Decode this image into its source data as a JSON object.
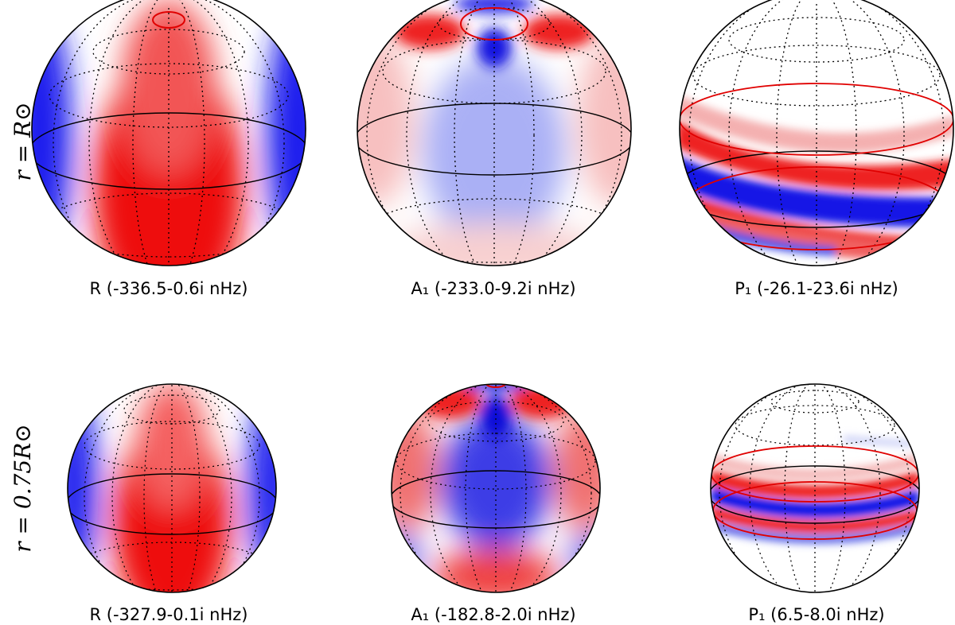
{
  "figure": {
    "row_labels": [
      "r = R⊙",
      "r = 0.75R⊙"
    ],
    "panels": [
      {
        "caption": "R (-336.5-0.6i nHz)",
        "pattern": "sectoral",
        "colorbar": "blue-white-red"
      },
      {
        "caption": "A₁ (-233.0-9.2i nHz)",
        "pattern": "high-latitude",
        "colorbar": "blue-white-red"
      },
      {
        "caption": "P₁ (-26.1-23.6i nHz)",
        "pattern": "equatorial-bands",
        "colorbar": "blue-white-red"
      },
      {
        "caption": "R (-327.9-0.1i nHz)",
        "pattern": "sectoral",
        "colorbar": "blue-white-red"
      },
      {
        "caption": "A₁ (-182.8-2.0i nHz)",
        "pattern": "high-latitude",
        "colorbar": "blue-white-red"
      },
      {
        "caption": "P₁ (6.5-8.0i nHz)",
        "pattern": "equatorial-bands",
        "colorbar": "blue-white-red"
      }
    ],
    "colors": {
      "positive": "#ff0000",
      "negative": "#0000ff",
      "critical_latitude": "#e00000",
      "equator": "#000000"
    }
  }
}
